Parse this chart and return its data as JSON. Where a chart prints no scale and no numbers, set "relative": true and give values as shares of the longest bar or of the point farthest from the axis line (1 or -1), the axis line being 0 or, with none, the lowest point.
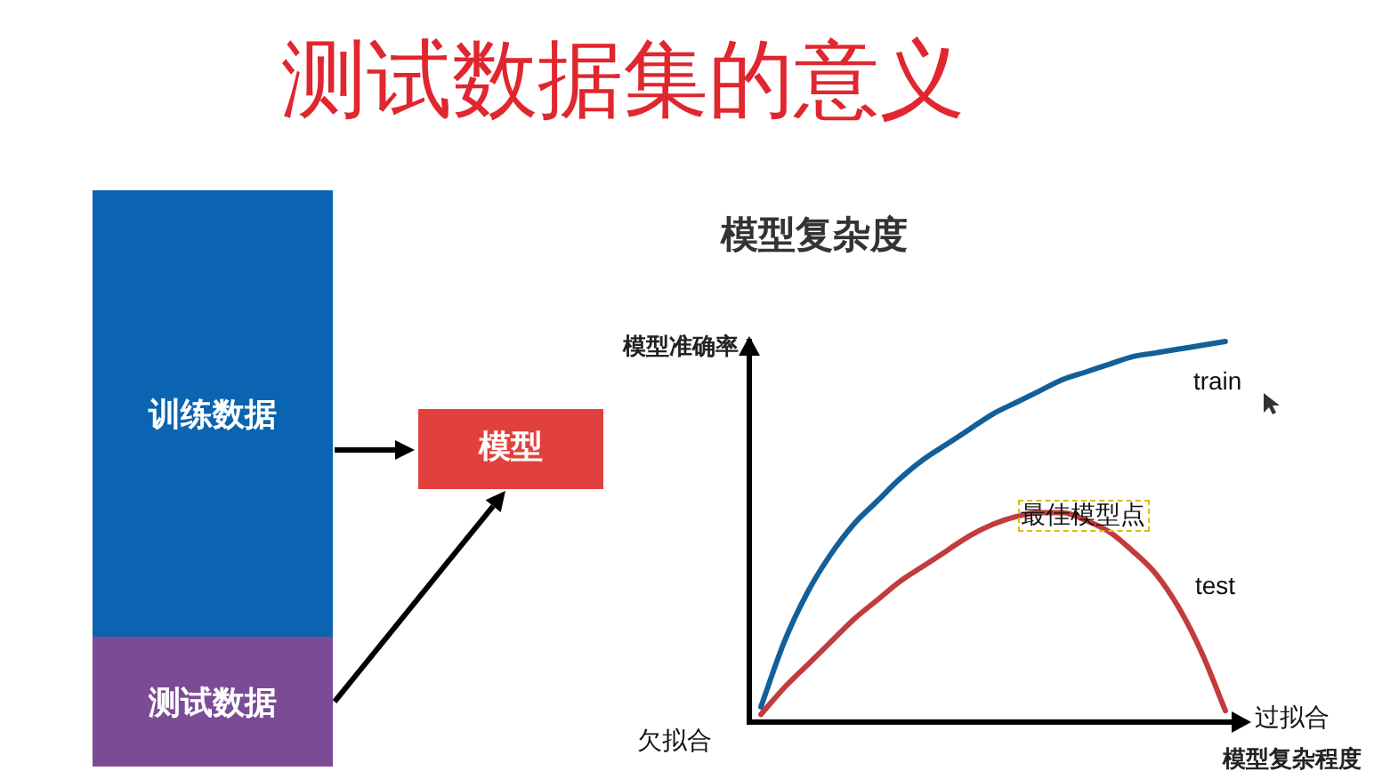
{
  "chart_data": [
    {
      "type": "other",
      "title": "测试数据集的意义",
      "annotations": [
        "训练数据",
        "测试数据",
        "模型"
      ]
    },
    {
      "type": "line",
      "title": "模型复杂度",
      "xlabel": "模型复杂程度",
      "ylabel": "模型准确率",
      "relative": true,
      "categories": [
        null,
        null,
        null,
        null,
        null,
        null,
        null,
        null,
        null,
        null,
        null,
        null,
        null,
        null,
        null,
        null,
        null,
        null,
        null,
        null,
        null
      ],
      "series": [
        {
          "name": "train",
          "color": "#135f99",
          "values": [
            0.04,
            0.21,
            0.34,
            0.44,
            0.52,
            0.58,
            0.64,
            0.69,
            0.73,
            0.77,
            0.81,
            0.84,
            0.87,
            0.9,
            0.92,
            0.94,
            0.96,
            0.97,
            0.98,
            0.99,
            1
          ]
        },
        {
          "name": "test",
          "color": "#c23b3d",
          "values": [
            0.02,
            0.09,
            0.15,
            0.21,
            0.27,
            0.32,
            0.37,
            0.41,
            0.45,
            0.49,
            0.52,
            0.54,
            0.55,
            0.55,
            0.53,
            0.5,
            0.45,
            0.39,
            0.3,
            0.18,
            0.03
          ]
        }
      ],
      "annotations": [
        "欠拟合",
        "过拟合",
        {
          "text": "最佳模型点",
          "y": 0.55
        }
      ]
    }
  ]
}
